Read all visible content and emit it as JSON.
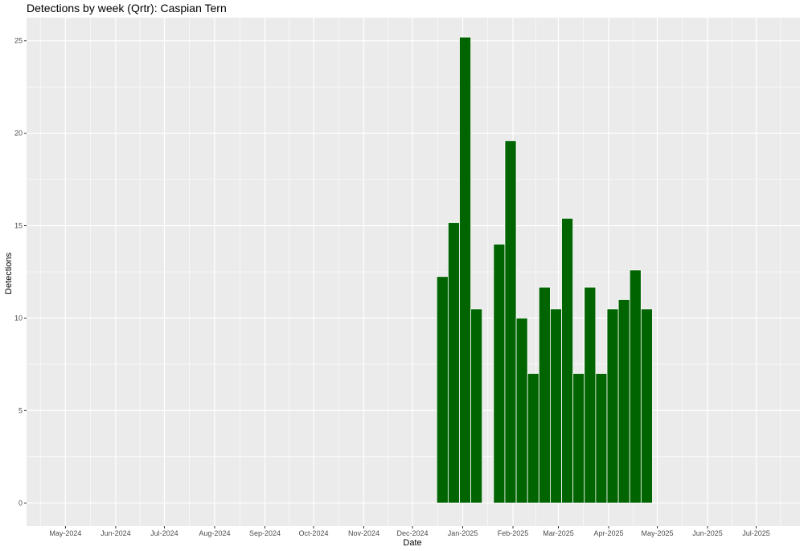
{
  "chart_data": {
    "type": "bar",
    "title": "Detections by week (Qrtr): Caspian Tern",
    "xlabel": "Date",
    "ylabel": "Detections",
    "x_tick_labels": [
      "May-2024",
      "Jun-2024",
      "Jul-2024",
      "Aug-2024",
      "Sep-2024",
      "Oct-2024",
      "Nov-2024",
      "Dec-2024",
      "Jan-2025",
      "Feb-2025",
      "Mar-2025",
      "Apr-2025",
      "May-2025",
      "Jun-2025",
      "Jul-2025"
    ],
    "y_ticks": [
      0,
      5,
      10,
      15,
      20,
      25
    ],
    "ylim": [
      -1.25,
      26.25
    ],
    "xlim": [
      "2024-04-07",
      "2025-07-28"
    ],
    "bars": [
      {
        "week_start": "2024-12-16",
        "value": 12.25
      },
      {
        "week_start": "2024-12-23",
        "value": 15.17
      },
      {
        "week_start": "2024-12-30",
        "value": 25.2
      },
      {
        "week_start": "2025-01-06",
        "value": 10.5
      },
      {
        "week_start": "2025-01-20",
        "value": 14.0
      },
      {
        "week_start": "2025-01-27",
        "value": 19.6
      },
      {
        "week_start": "2025-02-03",
        "value": 10.0
      },
      {
        "week_start": "2025-02-10",
        "value": 7.0
      },
      {
        "week_start": "2025-02-17",
        "value": 11.67
      },
      {
        "week_start": "2025-02-24",
        "value": 10.5
      },
      {
        "week_start": "2025-03-03",
        "value": 15.4
      },
      {
        "week_start": "2025-03-10",
        "value": 7.0
      },
      {
        "week_start": "2025-03-17",
        "value": 11.67
      },
      {
        "week_start": "2025-03-24",
        "value": 7.0
      },
      {
        "week_start": "2025-03-31",
        "value": 10.5
      },
      {
        "week_start": "2025-04-07",
        "value": 11.0
      },
      {
        "week_start": "2025-04-14",
        "value": 12.6
      },
      {
        "week_start": "2025-04-21",
        "value": 10.5
      }
    ],
    "bar_color": "#006400",
    "panel_background": "#ebebeb",
    "grid": true,
    "legend": "none"
  }
}
